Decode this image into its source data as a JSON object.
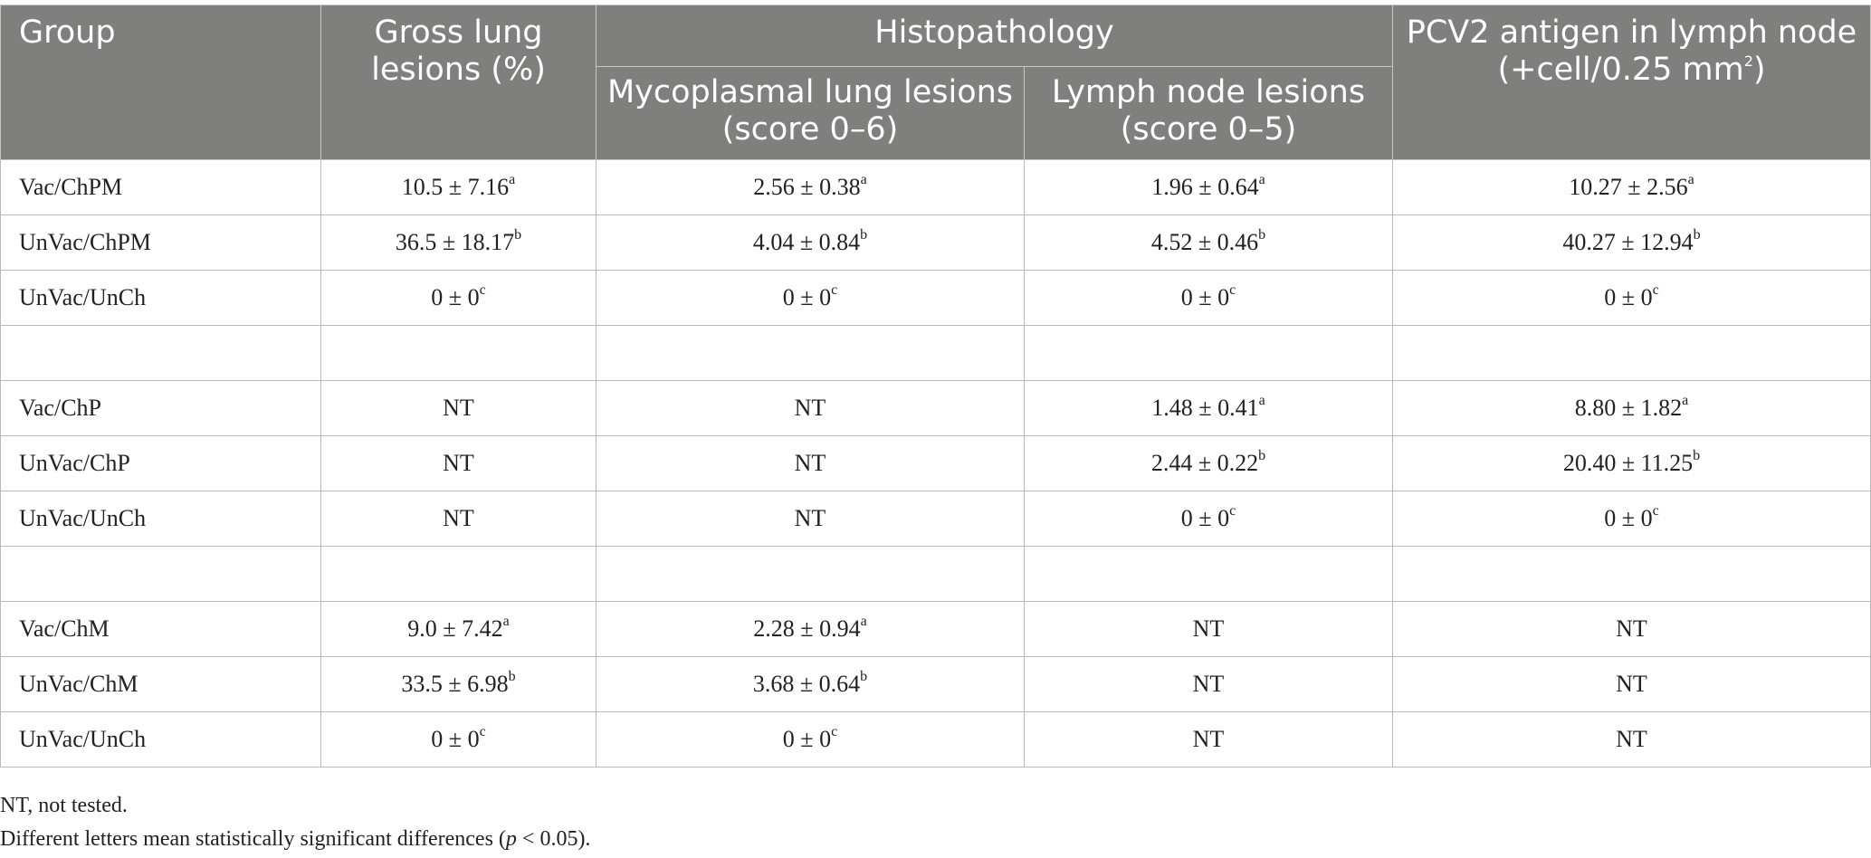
{
  "header": {
    "group": "Group",
    "gross": "Gross lung lesions (%)",
    "histopathology": "Histopathology",
    "myco": "Mycoplasmal lung lesions (score 0–6)",
    "lymph": "Lymph node lesions (score 0–5)",
    "pcv2_prefix": "PCV2 antigen in lymph node (+cell/0.25 mm",
    "pcv2_sup": "2",
    "pcv2_suffix": ")"
  },
  "rows": [
    {
      "group": "Vac/ChPM",
      "cells": [
        {
          "v": "10.5 ± 7.16",
          "s": "a"
        },
        {
          "v": "2.56 ± 0.38",
          "s": "a"
        },
        {
          "v": "1.96 ± 0.64",
          "s": "a"
        },
        {
          "v": "10.27 ± 2.56",
          "s": "a"
        }
      ]
    },
    {
      "group": "UnVac/ChPM",
      "cells": [
        {
          "v": "36.5 ± 18.17",
          "s": "b"
        },
        {
          "v": "4.04 ± 0.84",
          "s": "b"
        },
        {
          "v": "4.52 ± 0.46",
          "s": "b"
        },
        {
          "v": "40.27 ± 12.94",
          "s": "b"
        }
      ]
    },
    {
      "group": "UnVac/UnCh",
      "cells": [
        {
          "v": "0 ± 0",
          "s": "c"
        },
        {
          "v": "0 ± 0",
          "s": "c"
        },
        {
          "v": "0 ± 0",
          "s": "c"
        },
        {
          "v": "0 ± 0",
          "s": "c"
        }
      ]
    },
    {
      "group": "",
      "cells": [
        {
          "v": "",
          "s": ""
        },
        {
          "v": "",
          "s": ""
        },
        {
          "v": "",
          "s": ""
        },
        {
          "v": "",
          "s": ""
        }
      ]
    },
    {
      "group": "Vac/ChP",
      "cells": [
        {
          "v": "NT",
          "s": ""
        },
        {
          "v": "NT",
          "s": ""
        },
        {
          "v": "1.48 ± 0.41",
          "s": "a"
        },
        {
          "v": "8.80 ± 1.82",
          "s": "a"
        }
      ]
    },
    {
      "group": "UnVac/ChP",
      "cells": [
        {
          "v": "NT",
          "s": ""
        },
        {
          "v": "NT",
          "s": ""
        },
        {
          "v": "2.44 ± 0.22",
          "s": "b"
        },
        {
          "v": "20.40 ± 11.25",
          "s": "b"
        }
      ]
    },
    {
      "group": "UnVac/UnCh",
      "cells": [
        {
          "v": "NT",
          "s": ""
        },
        {
          "v": "NT",
          "s": ""
        },
        {
          "v": "0 ± 0",
          "s": "c"
        },
        {
          "v": "0 ± 0",
          "s": "c"
        }
      ]
    },
    {
      "group": "",
      "cells": [
        {
          "v": "",
          "s": ""
        },
        {
          "v": "",
          "s": ""
        },
        {
          "v": "",
          "s": ""
        },
        {
          "v": "",
          "s": ""
        }
      ]
    },
    {
      "group": "Vac/ChM",
      "cells": [
        {
          "v": "9.0 ± 7.42",
          "s": "a"
        },
        {
          "v": "2.28 ± 0.94",
          "s": "a"
        },
        {
          "v": "NT",
          "s": ""
        },
        {
          "v": "NT",
          "s": ""
        }
      ]
    },
    {
      "group": "UnVac/ChM",
      "cells": [
        {
          "v": "33.5 ± 6.98",
          "s": "b"
        },
        {
          "v": "3.68 ± 0.64",
          "s": "b"
        },
        {
          "v": "NT",
          "s": ""
        },
        {
          "v": "NT",
          "s": ""
        }
      ]
    },
    {
      "group": "UnVac/UnCh",
      "cells": [
        {
          "v": "0 ± 0",
          "s": "c"
        },
        {
          "v": "0 ± 0",
          "s": "c"
        },
        {
          "v": "NT",
          "s": ""
        },
        {
          "v": "NT",
          "s": ""
        }
      ]
    }
  ],
  "notes": {
    "nt": "NT, not tested.",
    "sig_prefix": "Different letters mean statistically significant differences (",
    "sig_p": "p",
    "sig_suffix": " < 0.05)."
  },
  "colors": {
    "header_bg": "#7f7f7e",
    "header_text": "#ffffff",
    "grid": "#b9b9b9"
  }
}
